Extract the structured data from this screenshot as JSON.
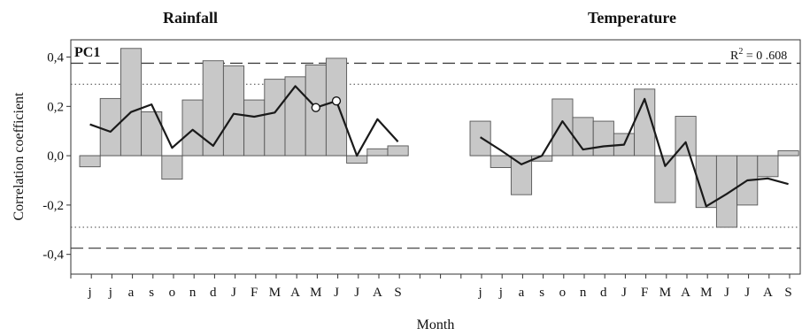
{
  "chart_data": {
    "type": "bar",
    "panel_label": "PC1",
    "ylabel": "Correlation coefficient",
    "xlabel": "Month",
    "ylim": [
      -0.48,
      0.47
    ],
    "yticks": [
      0.4,
      0.2,
      0.0,
      -0.2,
      -0.4
    ],
    "ytick_labels": [
      "0,4",
      "0,2",
      "0,0",
      "-0,2",
      "-0,4"
    ],
    "significance_dashed": 0.375,
    "significance_dotted": 0.29,
    "r2_label": "R",
    "r2_sup": "2",
    "r2_value": " = 0 .608",
    "panels": [
      {
        "title": "Rainfall",
        "categories": [
          "j",
          "j",
          "a",
          "s",
          "o",
          "n",
          "d",
          "J",
          "F",
          "M",
          "A",
          "M",
          "J",
          "J",
          "A",
          "S"
        ],
        "bars": [
          -0.045,
          0.232,
          0.435,
          0.178,
          -0.095,
          0.226,
          0.385,
          0.364,
          0.226,
          0.31,
          0.32,
          0.368,
          0.395,
          -0.03,
          0.028,
          0.04
        ],
        "line": [
          0.127,
          0.097,
          0.177,
          0.208,
          0.032,
          0.105,
          0.04,
          0.17,
          0.158,
          0.175,
          0.282,
          0.195,
          0.222,
          0.0,
          0.148,
          0.057
        ],
        "markers": [
          11,
          12
        ]
      },
      {
        "title": "Temperature",
        "categories": [
          "j",
          "j",
          "a",
          "s",
          "o",
          "n",
          "d",
          "J",
          "F",
          "M",
          "A",
          "M",
          "J",
          "J",
          "A",
          "S"
        ],
        "bars": [
          0.14,
          -0.048,
          -0.158,
          -0.022,
          0.23,
          0.155,
          0.14,
          0.09,
          0.27,
          -0.19,
          0.16,
          -0.21,
          -0.29,
          -0.2,
          -0.085,
          0.02
        ],
        "line": [
          0.075,
          0.022,
          -0.035,
          0.0,
          0.14,
          0.025,
          0.038,
          0.045,
          0.23,
          -0.042,
          0.055,
          -0.205,
          -0.155,
          -0.1,
          -0.092,
          -0.115
        ],
        "markers": []
      }
    ]
  },
  "colors": {
    "bar_fill": "#c8c8c8",
    "bar_stroke": "#555555",
    "line": "#1a1a1a"
  }
}
